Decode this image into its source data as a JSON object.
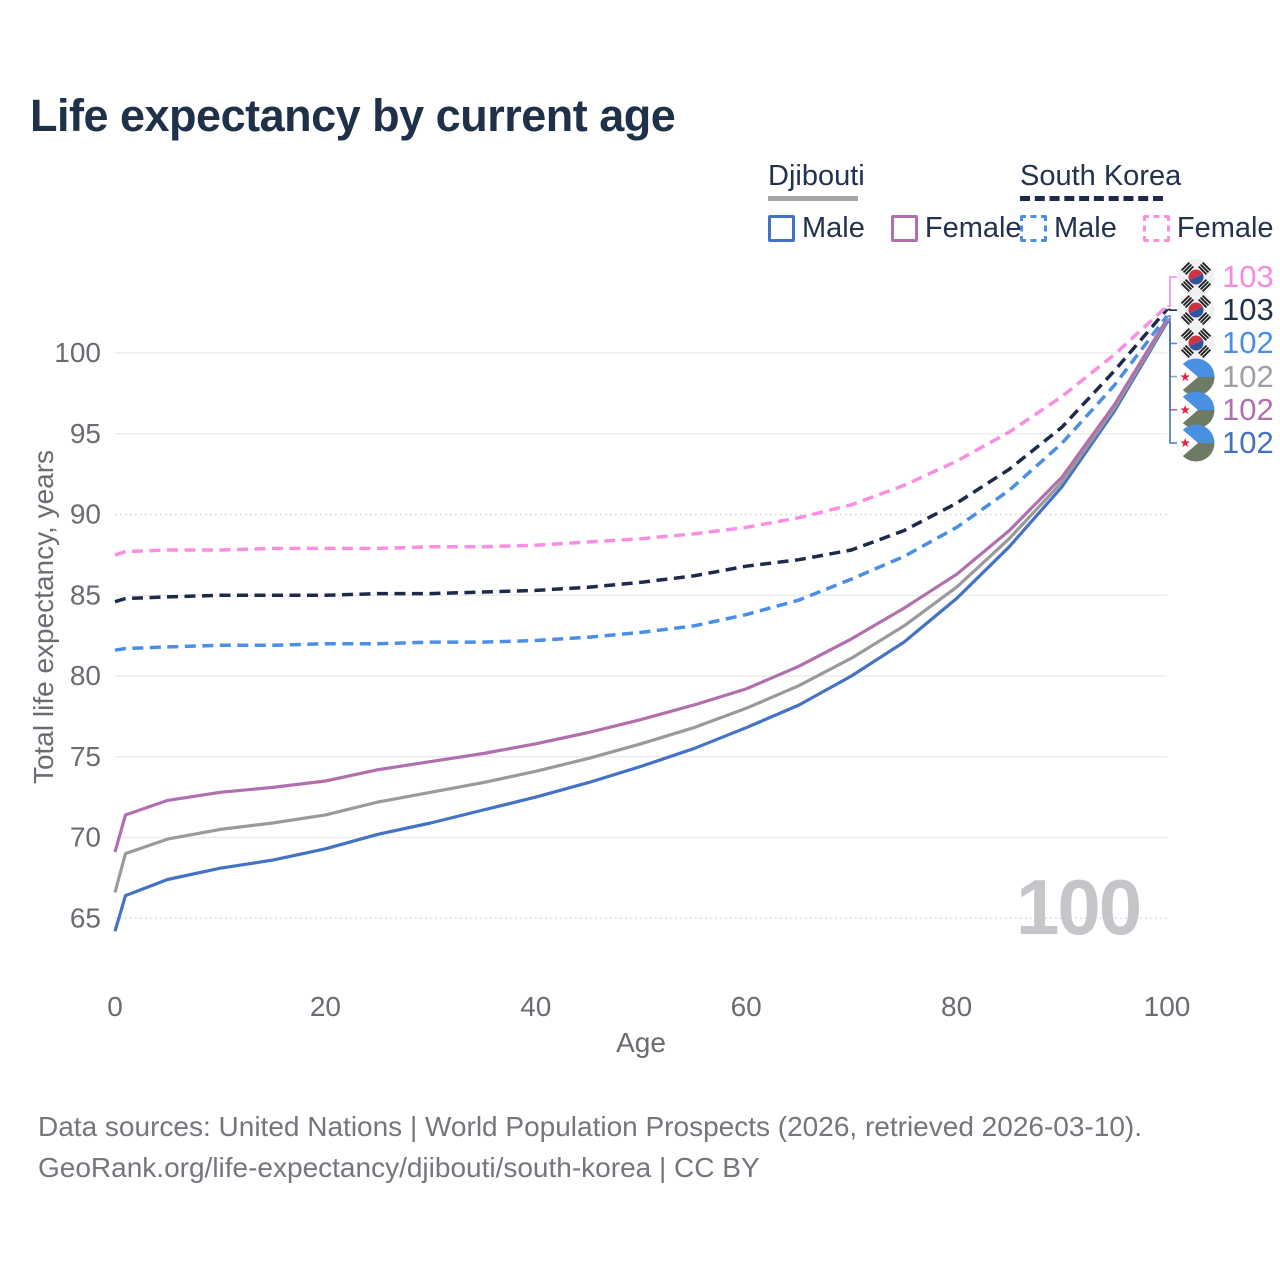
{
  "title": "Life expectancy by current age",
  "hovered_age": "100",
  "legend": {
    "djibouti": {
      "title": "Djibouti",
      "male_label": "Male",
      "female_label": "Female",
      "underline_color": "#a5a5a5",
      "underline_style": "solid"
    },
    "south_korea": {
      "title": "South Korea",
      "male_label": "Male",
      "female_label": "Female",
      "underline_color": "#1c2b4a",
      "underline_style": "dashed"
    }
  },
  "axes": {
    "xlabel": "Age",
    "ylabel": "Total life expectancy, years"
  },
  "footer": {
    "line1": "Data sources: United Nations | World Population Prospects (2026, retrieved 2026-03-10).",
    "line2": "GeoRank.org/life-expectancy/djibouti/south-korea | CC BY"
  },
  "colors": {
    "title_text": "#1e3148",
    "axis_text": "#6b6b74",
    "legend_text": "#23324e",
    "grid_solid": "#ececec",
    "grid_dotted": "#d2d2d6",
    "watermark": "#c6c6ca",
    "footer_text": "#75757d",
    "djibouti_male": "#4472c4",
    "djibouti_combined": "#9a9a9a",
    "djibouti_female": "#b170ad",
    "south_korea_male": "#4a8ee8",
    "south_korea_combined": "#1c2b4a",
    "south_korea_female": "#fa8ee2"
  },
  "chart_data": {
    "type": "line",
    "title": "Life expectancy by current age",
    "xlabel": "Age",
    "ylabel": "Total life expectancy, years",
    "xlim": [
      0,
      100
    ],
    "ylim": [
      63,
      104
    ],
    "xticks": [
      0,
      20,
      40,
      60,
      80,
      100
    ],
    "yticks": [
      65,
      70,
      75,
      80,
      85,
      90,
      95,
      100
    ],
    "dotted_yticks": [
      65,
      90
    ],
    "grid": true,
    "legend_position": "top-right",
    "x": [
      0,
      1,
      5,
      10,
      15,
      20,
      25,
      30,
      35,
      40,
      45,
      50,
      55,
      60,
      65,
      70,
      75,
      80,
      85,
      90,
      95,
      100
    ],
    "series": [
      {
        "id": "dji_male",
        "name": "Djibouti Male",
        "color": "#4472c4",
        "dashed": false,
        "values": [
          64.2,
          66.4,
          67.4,
          68.1,
          68.6,
          69.3,
          70.2,
          70.9,
          71.7,
          72.5,
          73.4,
          74.4,
          75.5,
          76.8,
          78.2,
          80.0,
          82.1,
          84.8,
          88.0,
          91.7,
          96.4,
          101.9
        ]
      },
      {
        "id": "dji_combined",
        "name": "Djibouti Both sexes",
        "color": "#9a9a9a",
        "dashed": false,
        "values": [
          66.6,
          69.0,
          69.9,
          70.5,
          70.9,
          71.4,
          72.2,
          72.8,
          73.4,
          74.1,
          74.9,
          75.8,
          76.8,
          78.0,
          79.4,
          81.1,
          83.1,
          85.5,
          88.5,
          92.0,
          96.6,
          102.0
        ]
      },
      {
        "id": "dji_female",
        "name": "Djibouti Female",
        "color": "#b170ad",
        "dashed": false,
        "values": [
          69.1,
          71.4,
          72.3,
          72.8,
          73.1,
          73.5,
          74.2,
          74.7,
          75.2,
          75.8,
          76.5,
          77.3,
          78.2,
          79.2,
          80.6,
          82.3,
          84.2,
          86.3,
          89.0,
          92.3,
          96.8,
          102.1
        ]
      },
      {
        "id": "sk_male",
        "name": "South Korea Male",
        "color": "#4a8ee8",
        "dashed": true,
        "values": [
          81.6,
          81.7,
          81.8,
          81.9,
          81.9,
          82.0,
          82.0,
          82.1,
          82.1,
          82.2,
          82.4,
          82.7,
          83.1,
          83.8,
          84.7,
          86.0,
          87.4,
          89.2,
          91.5,
          94.4,
          98.0,
          102.3
        ]
      },
      {
        "id": "sk_combined",
        "name": "South Korea Both sexes",
        "color": "#1c2b4a",
        "dashed": true,
        "values": [
          84.6,
          84.8,
          84.9,
          85.0,
          85.0,
          85.0,
          85.1,
          85.1,
          85.2,
          85.3,
          85.5,
          85.8,
          86.2,
          86.8,
          87.2,
          87.8,
          89.0,
          90.7,
          92.8,
          95.4,
          98.9,
          102.7
        ]
      },
      {
        "id": "sk_female",
        "name": "South Korea Female",
        "color": "#fa8ee2",
        "dashed": true,
        "values": [
          87.5,
          87.7,
          87.8,
          87.8,
          87.9,
          87.9,
          87.9,
          88.0,
          88.0,
          88.1,
          88.3,
          88.5,
          88.8,
          89.2,
          89.8,
          90.6,
          91.8,
          93.3,
          95.1,
          97.3,
          99.9,
          102.9
        ]
      }
    ],
    "end_labels": [
      {
        "flag": "kr",
        "text": "103",
        "color": "#f98bdf",
        "series": "sk_female"
      },
      {
        "flag": "kr",
        "text": "103",
        "color": "#1e3248",
        "series": "sk_combined"
      },
      {
        "flag": "kr",
        "text": "102",
        "color": "#4a8ee8",
        "series": "sk_male"
      },
      {
        "flag": "dj",
        "text": "102",
        "color": "#9ca0a8",
        "series": "dji_combined"
      },
      {
        "flag": "dj",
        "text": "102",
        "color": "#b170ad",
        "series": "dji_female"
      },
      {
        "flag": "dj",
        "text": "102",
        "color": "#4472c4",
        "series": "dji_male"
      }
    ]
  }
}
